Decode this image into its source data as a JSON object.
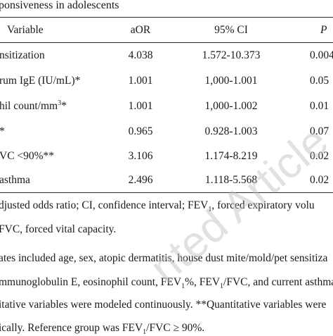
{
  "caption": "ponsiveness in adolescents",
  "headers": {
    "variable": "Variable",
    "aor": "aOR",
    "ci": "95% CI",
    "p": "P"
  },
  "rows": [
    {
      "variable": "nsitization",
      "aor": "4.038",
      "ci": "1.572-10.373",
      "p": "0.004"
    },
    {
      "variable_pre": "rum IgE (IU/mL)*",
      "aor": "1.001",
      "ci": "1,000-1.001",
      "p": "0.05"
    },
    {
      "variable_pre": "hil count/mm",
      "variable_sup": "3",
      "variable_post": "*",
      "aor": "1.001",
      "ci": "1,000-1.002",
      "p": "0.01"
    },
    {
      "variable": "*",
      "aor": "0.965",
      "ci": "0.928-1.003",
      "p": "0.07"
    },
    {
      "variable": "VC <90%**",
      "aor": "3.106",
      "ci": "1.174-8.219",
      "p": "0.02"
    },
    {
      "variable": "asthma",
      "aor": "2.496",
      "ci": "1.118-5.568",
      "p": "0.02"
    }
  ],
  "notes": {
    "line1_a": "djusted odds ratio; CI, confidence interval; FEV",
    "line1_sub": "1",
    "line1_b": ", forced expiratory volu",
    "line2": "FVC, forced vital capacity.",
    "line3": "ates included age, sex, atopic dermatitis, house dust mite/mold/pet sensitiza",
    "line4_a": "mmunoglobulin E, eosinophil count, FEV",
    "line4_sub1": "1",
    "line4_b": "%, FEV",
    "line4_sub2": "1",
    "line4_c": "/FVC, and current asthma.",
    "line5": "itative variables were modeled continuously. **Quantitative variables were",
    "line6_a": "ically. Reference group was FEV",
    "line6_sub": "1",
    "line6_b": "/FVC ≥ 90%."
  },
  "watermark": "nted Article"
}
